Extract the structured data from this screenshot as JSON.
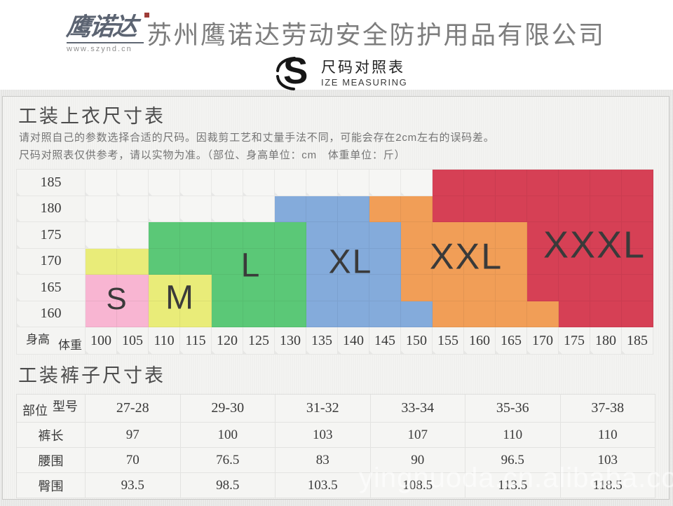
{
  "header": {
    "logo": {
      "brand": "鹰诺达",
      "url": "www.szynd.cn"
    },
    "company_name": "苏州鹰诺达劳动安全防护用品有限公司",
    "badge": {
      "s": "S",
      "title": "尺码对照表",
      "subtitle": "IZE MEASURING"
    }
  },
  "top_section": {
    "title": "工装上衣尺寸表",
    "desc_line1": "请对照自己的参数选择合适的尺码。因裁剪工艺和丈量手法不同，可能会存在2cm左右的误码差。",
    "desc_line2": "尺码对照表仅供参考，请以实物为准。（部位、身高单位：cm　体重单位：斤）"
  },
  "chart_data": {
    "type": "heatmap",
    "title": "工装上衣尺寸表",
    "y_axis_label": "身高",
    "x_axis_label": "体重",
    "y_ticks": [
      185,
      180,
      175,
      170,
      165,
      160
    ],
    "x_ticks": [
      100,
      105,
      110,
      115,
      120,
      125,
      130,
      135,
      140,
      145,
      150,
      155,
      160,
      165,
      170,
      175,
      180,
      185
    ],
    "regions": [
      {
        "name": "S",
        "color": "#F8B5D2",
        "label_size": 44,
        "label_pos": {
          "x": 45,
          "y": 187
        },
        "cells": [
          {
            "row": 165,
            "from": 100,
            "to": 105
          },
          {
            "row": 160,
            "from": 100,
            "to": 105
          }
        ]
      },
      {
        "name": "M",
        "color": "#E9EC79",
        "label_size": 48,
        "label_pos": {
          "x": 135,
          "y": 186
        },
        "cells": [
          {
            "row": 170,
            "from": 100,
            "to": 105
          },
          {
            "row": 165,
            "from": 110,
            "to": 115
          },
          {
            "row": 160,
            "from": 110,
            "to": 115
          }
        ]
      },
      {
        "name": "L",
        "color": "#5BC877",
        "label_size": 48,
        "label_pos": {
          "x": 236,
          "y": 140
        },
        "cells": [
          {
            "row": 175,
            "from": 110,
            "to": 130
          },
          {
            "row": 170,
            "from": 110,
            "to": 130
          },
          {
            "row": 165,
            "from": 120,
            "to": 130
          },
          {
            "row": 160,
            "from": 120,
            "to": 130
          }
        ]
      },
      {
        "name": "XL",
        "color": "#84ABDB",
        "label_size": 48,
        "label_pos": {
          "x": 378,
          "y": 135
        },
        "cells": [
          {
            "row": 180,
            "from": 130,
            "to": 140
          },
          {
            "row": 175,
            "from": 135,
            "to": 145
          },
          {
            "row": 170,
            "from": 135,
            "to": 145
          },
          {
            "row": 165,
            "from": 135,
            "to": 145
          },
          {
            "row": 160,
            "from": 135,
            "to": 150
          }
        ]
      },
      {
        "name": "XXL",
        "color": "#F19E57",
        "label_size": 52,
        "label_pos": {
          "x": 543,
          "y": 127
        },
        "cells": [
          {
            "row": 180,
            "from": 145,
            "to": 150
          },
          {
            "row": 175,
            "from": 150,
            "to": 165
          },
          {
            "row": 170,
            "from": 150,
            "to": 165
          },
          {
            "row": 165,
            "from": 150,
            "to": 165
          },
          {
            "row": 160,
            "from": 155,
            "to": 170
          }
        ]
      },
      {
        "name": "XXXL",
        "color": "#D64055",
        "label_size": 54,
        "label_pos": {
          "x": 726,
          "y": 110
        },
        "cells": [
          {
            "row": 185,
            "from": 155,
            "to": 185
          },
          {
            "row": 180,
            "from": 155,
            "to": 185
          },
          {
            "row": 175,
            "from": 170,
            "to": 185
          },
          {
            "row": 170,
            "from": 170,
            "to": 185
          },
          {
            "row": 165,
            "from": 170,
            "to": 185
          },
          {
            "row": 160,
            "from": 175,
            "to": 185
          }
        ]
      }
    ]
  },
  "bottom_section": {
    "title": "工装裤子尺寸表",
    "table": {
      "corner": {
        "top_right": "型号",
        "bottom_left": "部位"
      },
      "columns": [
        "27-28",
        "29-30",
        "31-32",
        "33-34",
        "35-36",
        "37-38"
      ],
      "rows": [
        {
          "label": "裤长",
          "values": [
            "97",
            "100",
            "103",
            "107",
            "110",
            "110"
          ]
        },
        {
          "label": "腰围",
          "values": [
            "70",
            "76.5",
            "83",
            "90",
            "96.5",
            "103"
          ]
        },
        {
          "label": "臀围",
          "values": [
            "93.5",
            "98.5",
            "103.5",
            "108.5",
            "113.5",
            "118.5"
          ]
        }
      ]
    }
  },
  "watermark": "yingnuoda.cn.alibaba.com",
  "colors": {
    "s": "#F8B5D2",
    "m": "#E9EC79",
    "l": "#5BC877",
    "xl": "#84ABDB",
    "xxl": "#F19E57",
    "xxxl": "#D64055",
    "panel_bg": "#f2f2f0",
    "text_grey": "#7d7d7d",
    "logo_slate": "#5c6472"
  }
}
